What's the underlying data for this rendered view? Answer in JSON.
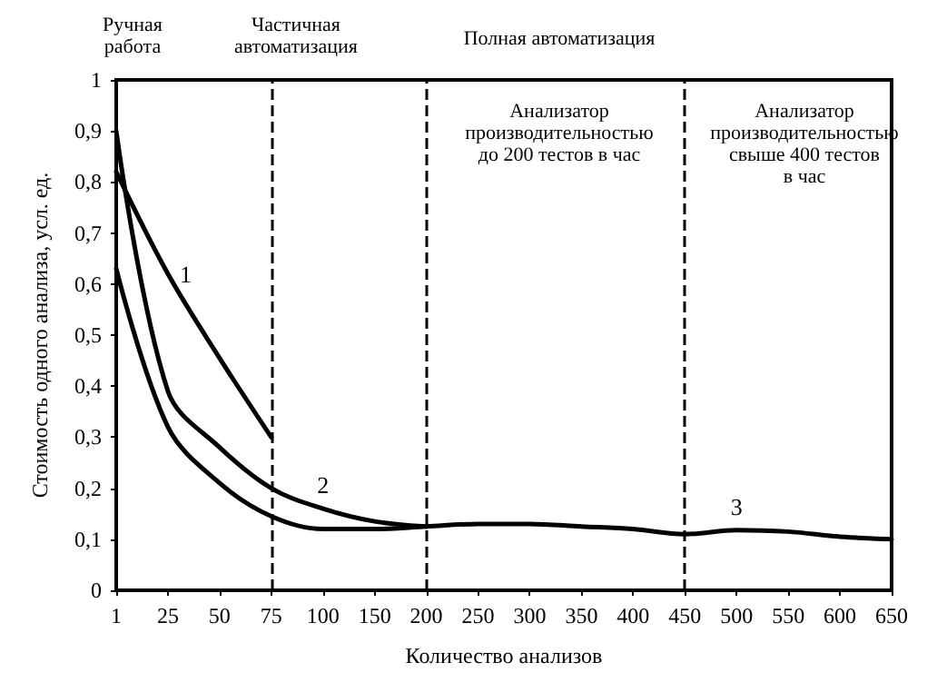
{
  "chart_data": {
    "type": "line",
    "xlabel": "Количество анализов",
    "ylabel": "Стоимость одного анализа, усл. ед.",
    "categories": [
      "1",
      "25",
      "50",
      "75",
      "100",
      "150",
      "200",
      "250",
      "300",
      "350",
      "400",
      "450",
      "500",
      "550",
      "600",
      "650"
    ],
    "series": [
      {
        "name": "1",
        "color": "#000000",
        "values": [
          0.82,
          0.62,
          0.455,
          0.3,
          null,
          null,
          null,
          null,
          null,
          null,
          null,
          null,
          null,
          null,
          null,
          null
        ]
      },
      {
        "name": "2",
        "color": "#000000",
        "values": [
          0.9,
          0.39,
          0.28,
          0.2,
          0.16,
          0.135,
          0.125,
          null,
          null,
          null,
          null,
          null,
          null,
          null,
          null,
          null
        ]
      },
      {
        "name": "3",
        "color": "#000000",
        "values": [
          0.63,
          0.32,
          0.21,
          0.145,
          0.12,
          0.12,
          0.125,
          0.13,
          0.13,
          0.125,
          0.12,
          0.11,
          0.118,
          0.115,
          0.105,
          0.1
        ]
      }
    ],
    "ylim": [
      0,
      1
    ],
    "yticks": [
      {
        "value": 0,
        "label": "0"
      },
      {
        "value": 0.1,
        "label": "0,1"
      },
      {
        "value": 0.2,
        "label": "0,2"
      },
      {
        "value": 0.3,
        "label": "0,3"
      },
      {
        "value": 0.4,
        "label": "0,4"
      },
      {
        "value": 0.5,
        "label": "0,5"
      },
      {
        "value": 0.6,
        "label": "0,6"
      },
      {
        "value": 0.7,
        "label": "0,7"
      },
      {
        "value": 0.8,
        "label": "0,8"
      },
      {
        "value": 0.9,
        "label": "0,9"
      },
      {
        "value": 1,
        "label": "1"
      }
    ],
    "ref_lines": [
      {
        "axis": "x",
        "value": "75",
        "line_style": "dashed"
      },
      {
        "axis": "x",
        "value": "200",
        "line_style": "dashed"
      },
      {
        "axis": "x",
        "value": "450",
        "line_style": "dashed"
      }
    ],
    "annotations": [
      "Ручная\nработа",
      "Частичная\nавтоматизация",
      "Полная автоматизация",
      "Анализатор\nпроизводительностью\nдо 200 тестов в час",
      "Анализатор\nпроизводительностью\nсвыше 400 тестов\nв час"
    ],
    "grid": false,
    "legend": false,
    "marker": "none",
    "line_style": "solid"
  }
}
